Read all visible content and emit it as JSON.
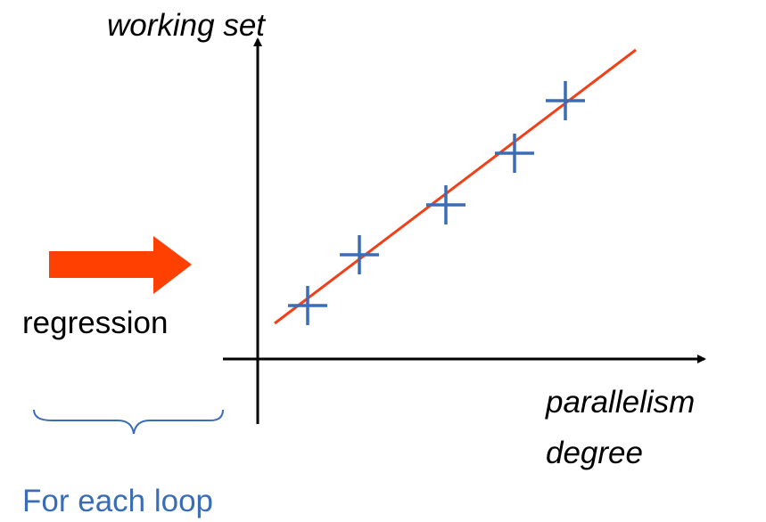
{
  "y_axis_label": "working set",
  "x_axis_label": [
    "parallelism",
    "degree"
  ],
  "arrow_label": "regression",
  "brace_label": "For each loop"
}
